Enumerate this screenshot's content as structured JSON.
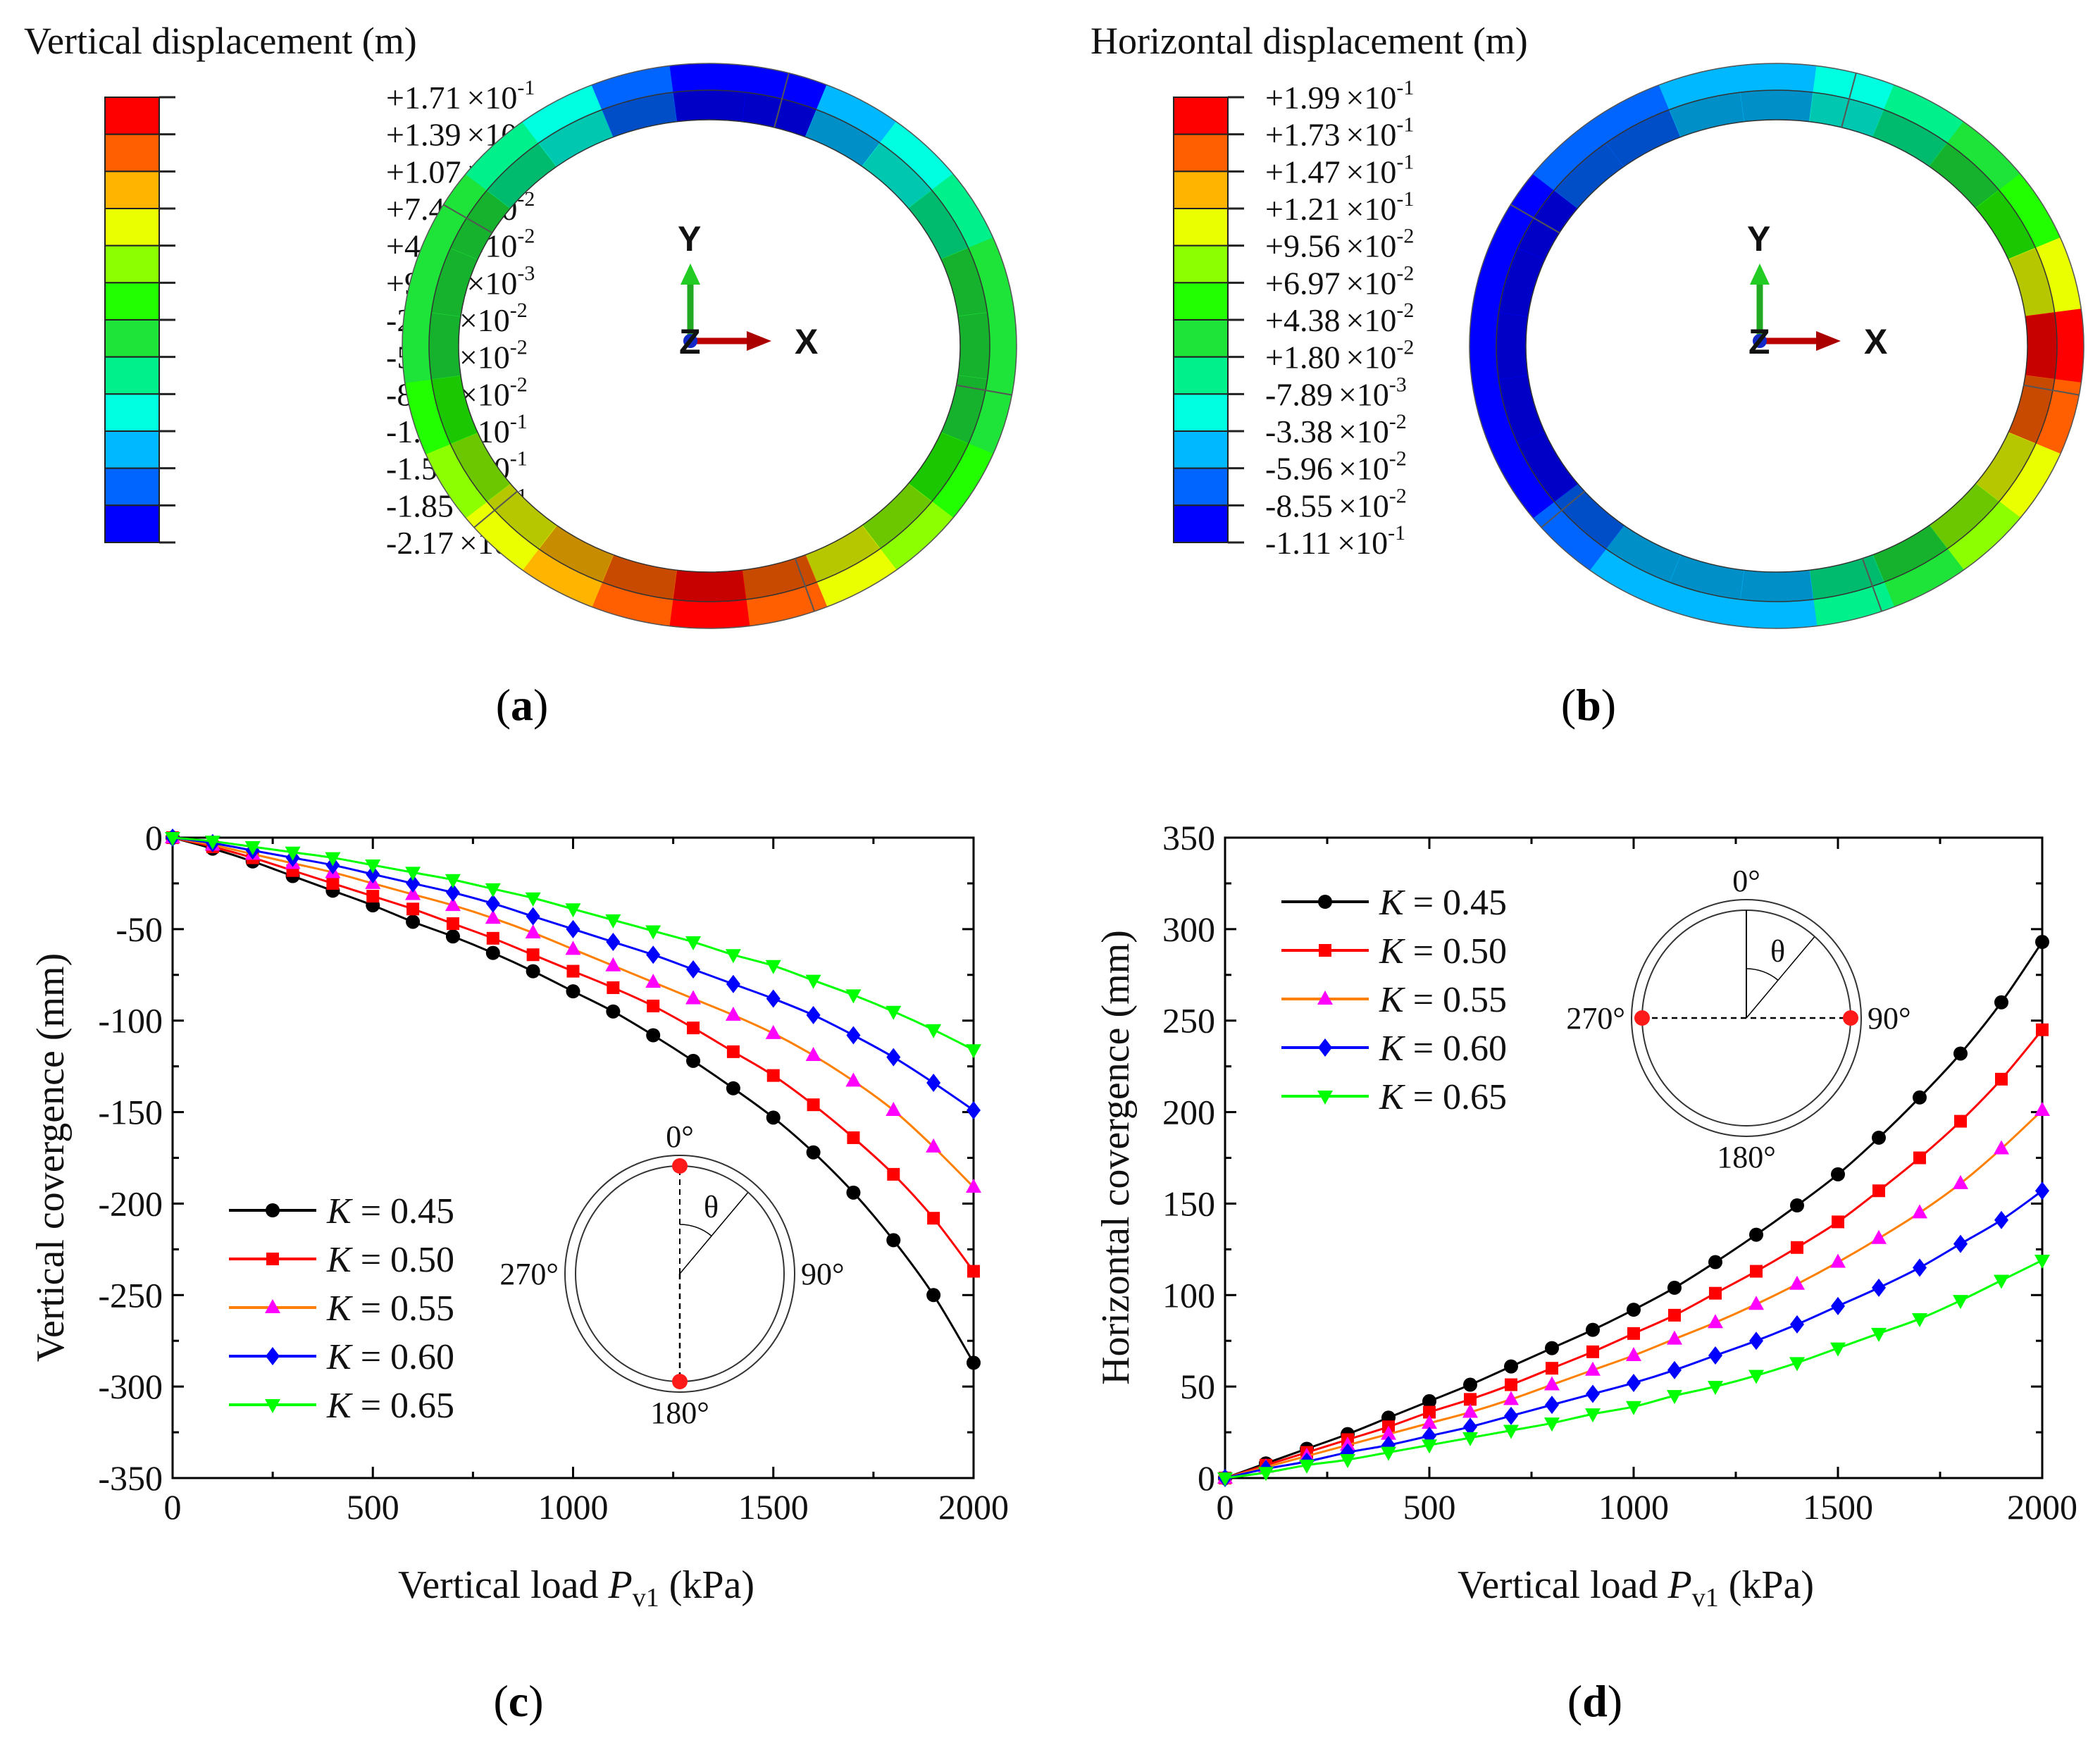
{
  "panels": {
    "a": {
      "label": "a",
      "title": "Vertical displacement (m)",
      "times_base": "×10",
      "scale": [
        {
          "mantissa": "+1.71",
          "exp": "-1"
        },
        {
          "mantissa": "+1.39",
          "exp": "-1"
        },
        {
          "mantissa": "+1.07",
          "exp": "-1"
        },
        {
          "mantissa": "+7.43",
          "exp": "-2"
        },
        {
          "mantissa": "+4.19",
          "exp": "-2"
        },
        {
          "mantissa": "+9.47",
          "exp": "-3"
        },
        {
          "mantissa": "-2.29",
          "exp": "-2"
        },
        {
          "mantissa": "-5.33",
          "exp": "-2"
        },
        {
          "mantissa": "-8.77",
          "exp": "-2"
        },
        {
          "mantissa": "-1.20",
          "exp": "-1"
        },
        {
          "mantissa": "-1.53",
          "exp": "-1"
        },
        {
          "mantissa": "-1.85",
          "exp": "-1"
        },
        {
          "mantissa": "-2.17",
          "exp": "-1"
        }
      ],
      "ring_bins_clockwise_from_top": [
        11,
        11,
        9,
        8,
        7,
        6,
        6,
        6,
        5,
        4,
        3,
        1,
        0,
        1,
        2,
        3,
        4,
        5,
        6,
        6,
        6,
        7,
        8,
        10
      ],
      "axes": {
        "y": "Y",
        "x": "X",
        "z": "Z"
      }
    },
    "b": {
      "label": "b",
      "title": "Horizontal displacement (m)",
      "times_base": "×10",
      "scale": [
        {
          "mantissa": "+1.99",
          "exp": "-1"
        },
        {
          "mantissa": "+1.73",
          "exp": "-1"
        },
        {
          "mantissa": "+1.47",
          "exp": "-1"
        },
        {
          "mantissa": "+1.21",
          "exp": "-1"
        },
        {
          "mantissa": "+9.56",
          "exp": "-2"
        },
        {
          "mantissa": "+6.97",
          "exp": "-2"
        },
        {
          "mantissa": "+4.38",
          "exp": "-2"
        },
        {
          "mantissa": "+1.80",
          "exp": "-2"
        },
        {
          "mantissa": "-7.89",
          "exp": "-3"
        },
        {
          "mantissa": "-3.38",
          "exp": "-2"
        },
        {
          "mantissa": "-5.96",
          "exp": "-2"
        },
        {
          "mantissa": "-8.55",
          "exp": "-2"
        },
        {
          "mantissa": "-1.11",
          "exp": "-1"
        }
      ],
      "ring_bins_clockwise_from_top": [
        9,
        8,
        7,
        6,
        5,
        3,
        0,
        1,
        3,
        4,
        6,
        7,
        9,
        9,
        9,
        10,
        11,
        11,
        11,
        11,
        11,
        10,
        10,
        9
      ],
      "axes": {
        "y": "Y",
        "x": "X",
        "z": "Z"
      }
    }
  },
  "contour_colors": [
    "#ff0000",
    "#ff5f00",
    "#ffb400",
    "#eaff00",
    "#8cff00",
    "#22ff00",
    "#1ee43a",
    "#00f08c",
    "#00ffe0",
    "#00b8ff",
    "#0064ff",
    "#0000ff"
  ],
  "chart_data": [
    {
      "panel_label": "c",
      "type": "line",
      "xlabel": {
        "pre": "Vertical load ",
        "var": "P",
        "sub": "v1",
        "post": " (kPa)"
      },
      "ylabel": "Vertical covergence (mm)",
      "xlim": [
        0,
        2000
      ],
      "ylim": [
        -350,
        0
      ],
      "xticks": [
        0,
        500,
        1000,
        1500,
        2000
      ],
      "yticks": [
        0,
        -50,
        -100,
        -150,
        -200,
        -250,
        -300,
        -350
      ],
      "grid": false,
      "legend_position": "bottom-left",
      "x": [
        0,
        100,
        200,
        300,
        400,
        500,
        600,
        700,
        800,
        900,
        1000,
        1100,
        1200,
        1300,
        1400,
        1500,
        1600,
        1700,
        1800,
        1900,
        2000
      ],
      "series": [
        {
          "var": "K",
          "name": " = 0.45",
          "marker": "circle",
          "line_color": "#000000",
          "marker_color": "#000000",
          "values": [
            0,
            -6,
            -13,
            -21,
            -29,
            -37,
            -46,
            -54,
            -63,
            -73,
            -84,
            -95,
            -108,
            -122,
            -137,
            -153,
            -172,
            -194,
            -220,
            -250,
            -287
          ]
        },
        {
          "var": "K",
          "name": " = 0.50",
          "marker": "square",
          "line_color": "#ff0000",
          "marker_color": "#ff0000",
          "values": [
            0,
            -5,
            -11,
            -18,
            -25,
            -32,
            -39,
            -47,
            -55,
            -64,
            -73,
            -82,
            -92,
            -104,
            -117,
            -130,
            -146,
            -164,
            -184,
            -208,
            -237
          ]
        },
        {
          "var": "K",
          "name": " = 0.55",
          "marker": "triangle-up",
          "line_color": "#ff8000",
          "marker_color": "#ff00ff",
          "values": [
            0,
            -4,
            -9,
            -14,
            -19,
            -25,
            -31,
            -37,
            -44,
            -52,
            -61,
            -70,
            -79,
            -88,
            -97,
            -107,
            -119,
            -133,
            -149,
            -169,
            -191
          ]
        },
        {
          "var": "K",
          "name": " = 0.60",
          "marker": "diamond",
          "line_color": "#0000ff",
          "marker_color": "#0000ff",
          "values": [
            0,
            -3,
            -7,
            -11,
            -15,
            -20,
            -25,
            -30,
            -36,
            -43,
            -50,
            -57,
            -64,
            -72,
            -80,
            -88,
            -97,
            -108,
            -120,
            -134,
            -149
          ]
        },
        {
          "var": "K",
          "name": " = 0.65",
          "marker": "triangle-down",
          "line_color": "#00ff00",
          "marker_color": "#00ff00",
          "values": [
            0,
            -2,
            -5,
            -8,
            -11,
            -15,
            -19,
            -23,
            -28,
            -33,
            -39,
            -45,
            -51,
            -57,
            -64,
            -70,
            -78,
            -86,
            -95,
            -105,
            -116
          ]
        }
      ],
      "inset": {
        "top": "0°",
        "right": "90°",
        "bottom": "180°",
        "left": "270°",
        "angle": "θ",
        "measured": "vertical"
      }
    },
    {
      "panel_label": "d",
      "type": "line",
      "xlabel": {
        "pre": "Vertical load ",
        "var": "P",
        "sub": "v1",
        "post": " (kPa)"
      },
      "ylabel": "Horizontal covergence (mm)",
      "xlim": [
        0,
        2000
      ],
      "ylim": [
        0,
        350
      ],
      "xticks": [
        0,
        500,
        1000,
        1500,
        2000
      ],
      "yticks": [
        0,
        50,
        100,
        150,
        200,
        250,
        300,
        350
      ],
      "grid": false,
      "legend_position": "top-left",
      "x": [
        0,
        100,
        200,
        300,
        400,
        500,
        600,
        700,
        800,
        900,
        1000,
        1100,
        1200,
        1300,
        1400,
        1500,
        1600,
        1700,
        1800,
        1900,
        2000
      ],
      "series": [
        {
          "var": "K",
          "name": " = 0.45",
          "marker": "circle",
          "line_color": "#000000",
          "marker_color": "#000000",
          "values": [
            0,
            8,
            16,
            24,
            33,
            42,
            51,
            61,
            71,
            81,
            92,
            104,
            118,
            133,
            149,
            166,
            186,
            208,
            232,
            260,
            293
          ]
        },
        {
          "var": "K",
          "name": " = 0.50",
          "marker": "square",
          "line_color": "#ff0000",
          "marker_color": "#ff0000",
          "values": [
            0,
            7,
            14,
            21,
            28,
            36,
            43,
            51,
            60,
            69,
            79,
            89,
            101,
            113,
            126,
            140,
            157,
            175,
            195,
            218,
            245
          ]
        },
        {
          "var": "K",
          "name": " = 0.55",
          "marker": "triangle-up",
          "line_color": "#ff8000",
          "marker_color": "#ff00ff",
          "values": [
            0,
            6,
            12,
            18,
            24,
            30,
            36,
            43,
            51,
            59,
            67,
            76,
            85,
            95,
            106,
            118,
            131,
            145,
            161,
            180,
            201
          ]
        },
        {
          "var": "K",
          "name": " = 0.60",
          "marker": "diamond",
          "line_color": "#0000ff",
          "marker_color": "#0000ff",
          "values": [
            0,
            5,
            9,
            14,
            18,
            23,
            28,
            34,
            40,
            46,
            52,
            59,
            67,
            75,
            84,
            94,
            104,
            115,
            128,
            141,
            157
          ]
        },
        {
          "var": "K",
          "name": " = 0.65",
          "marker": "triangle-down",
          "line_color": "#00ff00",
          "marker_color": "#00ff00",
          "values": [
            0,
            3,
            7,
            10,
            14,
            18,
            22,
            26,
            30,
            35,
            39,
            45,
            50,
            56,
            63,
            71,
            79,
            87,
            97,
            108,
            119
          ]
        }
      ],
      "inset": {
        "top": "0°",
        "right": "90°",
        "bottom": "180°",
        "left": "270°",
        "angle": "θ",
        "measured": "horizontal"
      }
    }
  ]
}
